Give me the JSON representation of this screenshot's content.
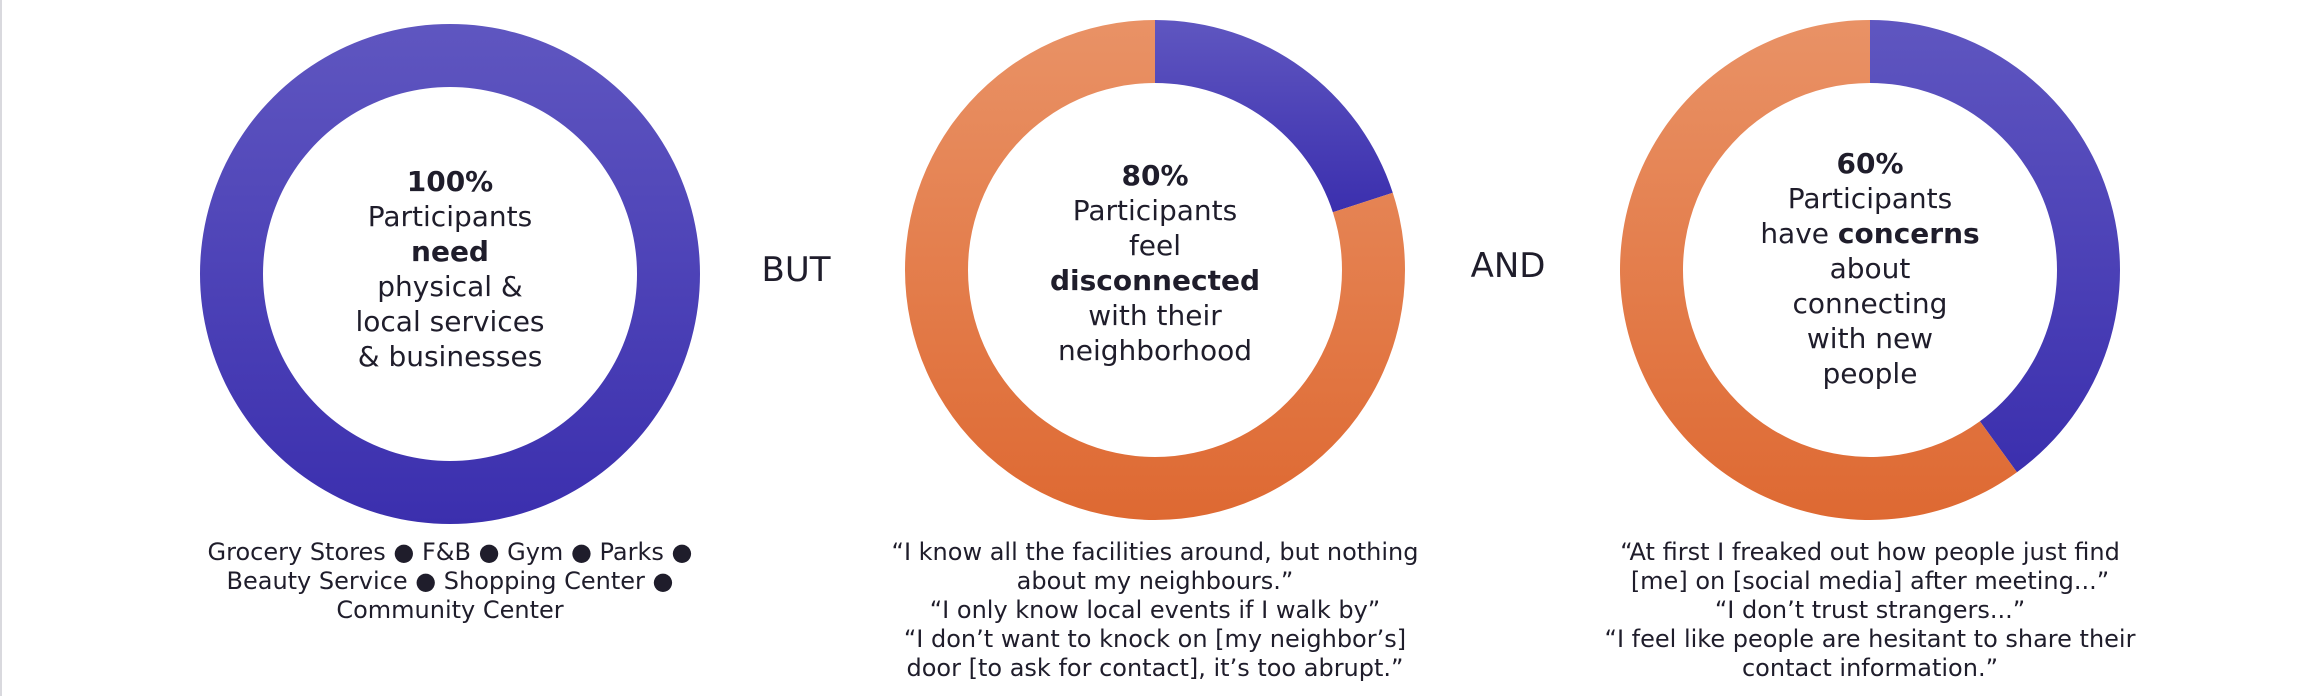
{
  "colors": {
    "purple_top": "#5f56c0",
    "purple_bottom": "#3b2fae",
    "orange_top": "#e99266",
    "orange_bottom": "#de6932",
    "text": "#1f1d2b"
  },
  "connectors": [
    "BUT",
    "AND"
  ],
  "chart_data": [
    {
      "type": "pie",
      "style": "donut",
      "start": "top, clockwise",
      "slices": [
        {
          "value": 100,
          "color": "purple"
        },
        {
          "value": 0,
          "color": "orange"
        }
      ],
      "center": {
        "pct": "100%",
        "lines": [
          {
            "parts": [
              {
                "t": "Participants",
                "b": false
              }
            ]
          },
          {
            "parts": [
              {
                "t": "need",
                "b": true
              }
            ]
          },
          {
            "parts": [
              {
                "t": "physical &",
                "b": false
              }
            ]
          },
          {
            "parts": [
              {
                "t": "local services",
                "b": false
              }
            ]
          },
          {
            "parts": [
              {
                "t": "& businesses",
                "b": false
              }
            ]
          }
        ]
      },
      "caption": [
        "Grocery Stores ● F&B ● Gym ● Parks ●",
        "Beauty Service ● Shopping Center ●",
        "Community Center"
      ]
    },
    {
      "type": "pie",
      "style": "donut",
      "start": "top, clockwise",
      "slices": [
        {
          "value": 20,
          "color": "purple"
        },
        {
          "value": 80,
          "color": "orange"
        }
      ],
      "center": {
        "pct": "80%",
        "lines": [
          {
            "parts": [
              {
                "t": "Participants",
                "b": false
              }
            ]
          },
          {
            "parts": [
              {
                "t": "feel",
                "b": false
              }
            ]
          },
          {
            "parts": [
              {
                "t": "disconnected",
                "b": true
              }
            ]
          },
          {
            "parts": [
              {
                "t": "with their",
                "b": false
              }
            ]
          },
          {
            "parts": [
              {
                "t": "neighborhood",
                "b": false
              }
            ]
          }
        ]
      },
      "caption": [
        "“I know all the facilities around, but nothing",
        "about my neighbours.”",
        "“I only know local events if I walk by”",
        "“I don’t want to knock on [my neighbor’s]",
        "door [to ask for contact], it’s too abrupt.”"
      ]
    },
    {
      "type": "pie",
      "style": "donut",
      "start": "top, clockwise",
      "slices": [
        {
          "value": 40,
          "color": "purple"
        },
        {
          "value": 60,
          "color": "orange"
        }
      ],
      "center": {
        "pct": "60%",
        "lines": [
          {
            "parts": [
              {
                "t": "Participants",
                "b": false
              }
            ]
          },
          {
            "parts": [
              {
                "t": "have ",
                "b": false
              },
              {
                "t": "concerns",
                "b": true
              }
            ]
          },
          {
            "parts": [
              {
                "t": "about",
                "b": false
              }
            ]
          },
          {
            "parts": [
              {
                "t": "connecting",
                "b": false
              }
            ]
          },
          {
            "parts": [
              {
                "t": "with new",
                "b": false
              }
            ]
          },
          {
            "parts": [
              {
                "t": "people",
                "b": false
              }
            ]
          }
        ]
      },
      "caption": [
        "“At first I freaked out how people just find",
        "[me] on [social media] after meeting...”",
        "“I don’t trust strangers...”",
        "“I feel like people are hesitant to share their",
        "contact information.”"
      ]
    }
  ]
}
